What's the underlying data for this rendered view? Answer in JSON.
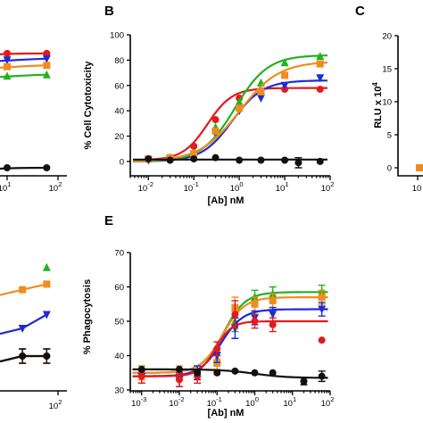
{
  "colors": {
    "black": "#111111",
    "red": "#e41a1c",
    "blue": "#1f2bd6",
    "green": "#22b21e",
    "orange": "#f08c1e"
  },
  "panels": {
    "A": {
      "letter": "",
      "ylabel": "",
      "xlabel": "",
      "x_ticks": [
        {
          "label_base": "10",
          "label_exp": "1"
        },
        {
          "label_base": "10",
          "label_exp": "2"
        }
      ]
    },
    "B": {
      "letter": "B",
      "ylabel": "% Cell Cytotoxicity",
      "xlabel": "[Ab] nM",
      "y_ticks": [
        "0",
        "20",
        "40",
        "60",
        "80",
        "100"
      ],
      "x_ticks": [
        {
          "label_base": "10",
          "label_exp": "-2"
        },
        {
          "label_base": "10",
          "label_exp": "-1"
        },
        {
          "label_base": "10",
          "label_exp": "0"
        },
        {
          "label_base": "10",
          "label_exp": "1"
        },
        {
          "label_base": "10",
          "label_exp": "2"
        }
      ]
    },
    "C": {
      "letter": "C",
      "ylabel_main": "RLU x 10",
      "ylabel_exp": "4",
      "y_ticks": [
        "0",
        "5",
        "10",
        "15",
        "20"
      ],
      "x_ticks": [
        {
          "label_base": "10",
          "label_exp": ""
        }
      ]
    },
    "D": {
      "x_ticks": [
        {
          "label_base": "10",
          "label_exp": "2"
        }
      ]
    },
    "E": {
      "letter": "E",
      "ylabel": "% Phagocytosis",
      "xlabel": "[Ab] nM",
      "y_ticks": [
        "30",
        "40",
        "50",
        "60",
        "70"
      ],
      "x_ticks": [
        {
          "label_base": "10",
          "label_exp": "-3"
        },
        {
          "label_base": "10",
          "label_exp": "-2"
        },
        {
          "label_base": "10",
          "label_exp": "-1"
        },
        {
          "label_base": "10",
          "label_exp": "0"
        },
        {
          "label_base": "10",
          "label_exp": "1"
        },
        {
          "label_base": "10",
          "label_exp": "2"
        }
      ]
    }
  },
  "chart_data": [
    {
      "panel": "B",
      "type": "scatter",
      "ylabel": "% Cell Cytotoxicity",
      "xlabel": "[Ab] nM",
      "x_scale": "log",
      "xlim": [
        0.004,
        100
      ],
      "ylim": [
        -5,
        100
      ],
      "series": [
        {
          "color": "red",
          "marker": "circle",
          "x": [
            0.01,
            0.03,
            0.1,
            0.3,
            1,
            3,
            10,
            60
          ],
          "y": [
            2,
            3,
            12,
            33,
            50,
            55,
            57,
            57
          ],
          "fit": {
            "bottom": 1,
            "top": 58,
            "ec50": 0.2,
            "hill": 1.6
          }
        },
        {
          "color": "blue",
          "marker": "triangle-down",
          "x": [
            0.01,
            0.03,
            0.1,
            0.3,
            1,
            3,
            10,
            60
          ],
          "y": [
            1,
            2,
            6,
            22,
            40,
            50,
            60,
            66
          ],
          "fit": {
            "bottom": 0,
            "top": 64,
            "ec50": 0.7,
            "hill": 1.3
          }
        },
        {
          "color": "green",
          "marker": "triangle-up",
          "x": [
            0.01,
            0.03,
            0.1,
            0.3,
            1,
            3,
            10,
            60
          ],
          "y": [
            2,
            3,
            7,
            27,
            47,
            62,
            78,
            83
          ],
          "fit": {
            "bottom": 0,
            "top": 84,
            "ec50": 0.8,
            "hill": 1.2
          }
        },
        {
          "color": "orange",
          "marker": "square",
          "x": [
            0.01,
            0.03,
            0.1,
            0.3,
            1,
            3,
            10,
            60
          ],
          "y": [
            2,
            3,
            6,
            24,
            42,
            55,
            68,
            77
          ],
          "fit": {
            "bottom": 0,
            "top": 79,
            "ec50": 1.0,
            "hill": 1.0
          }
        },
        {
          "color": "black",
          "marker": "circle",
          "x": [
            0.01,
            0.03,
            0.1,
            0.3,
            1,
            3,
            10,
            20,
            60
          ],
          "y": [
            2,
            1,
            2,
            3,
            1,
            1,
            1,
            -1,
            0
          ],
          "yerr": [
            0,
            0,
            0,
            0,
            0,
            0,
            0,
            4,
            0
          ],
          "fit": {
            "flat": 1.5
          }
        }
      ]
    },
    {
      "panel": "E",
      "type": "scatter",
      "ylabel": "% Phagocytosis",
      "xlabel": "[Ab] nM",
      "x_scale": "log",
      "xlim": [
        0.0005,
        100
      ],
      "ylim": [
        30,
        70
      ],
      "series": [
        {
          "color": "green",
          "marker": "triangle-up",
          "x": [
            0.001,
            0.01,
            0.03,
            0.1,
            0.3,
            1,
            3,
            60
          ],
          "y": [
            35,
            34,
            35,
            39,
            50,
            57,
            58,
            58.5
          ],
          "yerr": [
            2,
            1,
            2,
            2,
            3,
            2,
            2,
            2
          ],
          "fit": {
            "bottom": 35,
            "top": 58.5,
            "ec50": 0.15,
            "hill": 1.5
          }
        },
        {
          "color": "orange",
          "marker": "square",
          "x": [
            0.001,
            0.01,
            0.03,
            0.1,
            0.3,
            1,
            3,
            60
          ],
          "y": [
            35,
            35,
            35,
            38,
            54,
            55,
            56,
            57
          ],
          "yerr": [
            2,
            2,
            2,
            2,
            3,
            2,
            2,
            2
          ],
          "fit": {
            "bottom": 35,
            "top": 57,
            "ec50": 0.14,
            "hill": 1.5
          }
        },
        {
          "color": "blue",
          "marker": "triangle-down",
          "x": [
            0.001,
            0.01,
            0.03,
            0.1,
            0.3,
            1,
            3,
            60
          ],
          "y": [
            34,
            33,
            35,
            40,
            48,
            51,
            52,
            53.5
          ],
          "yerr": [
            2,
            2,
            2,
            2,
            3,
            2,
            2,
            2
          ],
          "fit": {
            "bottom": 34,
            "top": 53.5,
            "ec50": 0.13,
            "hill": 1.5
          }
        },
        {
          "color": "red",
          "marker": "circle",
          "x": [
            0.001,
            0.01,
            0.03,
            0.1,
            0.3,
            1,
            3,
            60
          ],
          "y": [
            34,
            33,
            34,
            42,
            52,
            50,
            49,
            44.5
          ],
          "yerr": [
            2,
            2,
            2,
            2,
            4,
            2,
            2,
            0
          ],
          "fit": {
            "bottom": 34,
            "top": 50,
            "ec50": 0.09,
            "hill": 2.0
          }
        },
        {
          "color": "black",
          "marker": "circle",
          "x": [
            0.001,
            0.01,
            0.03,
            0.1,
            0.3,
            1,
            3,
            20,
            60
          ],
          "y": [
            36,
            36,
            35,
            35,
            35.5,
            35,
            35,
            32.5,
            34
          ],
          "yerr": [
            0,
            0,
            0,
            0,
            0,
            0,
            0,
            1,
            1.5
          ],
          "fit": {
            "bottom": 33.5,
            "top": 36,
            "ec50": 1.0,
            "hill": -1.0
          }
        }
      ]
    },
    {
      "panel": "A",
      "type": "scatter",
      "note_visible_fragment": "panel truncated at left edge",
      "series": [
        {
          "color": "red",
          "marker": "circle",
          "x": [
            10,
            60
          ],
          "y": [
            86,
            86
          ]
        },
        {
          "color": "blue",
          "marker": "triangle-down",
          "x": [
            10,
            60
          ],
          "y": [
            81,
            82
          ]
        },
        {
          "color": "orange",
          "marker": "square",
          "x": [
            10,
            60
          ],
          "y": [
            76,
            77
          ]
        },
        {
          "color": "green",
          "marker": "triangle-up",
          "x": [
            10,
            60
          ],
          "y": [
            69,
            70
          ]
        },
        {
          "color": "black",
          "marker": "circle",
          "x": [
            10,
            60
          ],
          "y": [
            0,
            0
          ]
        }
      ]
    },
    {
      "panel": "D",
      "type": "scatter",
      "series": [
        {
          "color": "green",
          "marker": "triangle-up",
          "x": [
            60
          ],
          "y": [
            72
          ]
        },
        {
          "color": "orange",
          "marker": "square",
          "x": [
            20,
            60
          ],
          "y": [
            64,
            66
          ]
        },
        {
          "color": "blue",
          "marker": "triangle-down",
          "x": [
            20,
            60
          ],
          "y": [
            50,
            55
          ]
        },
        {
          "color": "red",
          "marker": "circle",
          "x": [
            20,
            60
          ],
          "y": [
            40,
            40
          ]
        },
        {
          "color": "black",
          "marker": "circle",
          "x": [
            20,
            60
          ],
          "y": [
            40,
            40
          ]
        }
      ]
    },
    {
      "panel": "C",
      "type": "scatter",
      "ylabel": "RLU x 10^4",
      "ylim": [
        0,
        20
      ],
      "series": [
        {
          "color": "orange",
          "marker": "square",
          "x": [
            0.01
          ],
          "y": [
            0
          ]
        }
      ]
    }
  ]
}
